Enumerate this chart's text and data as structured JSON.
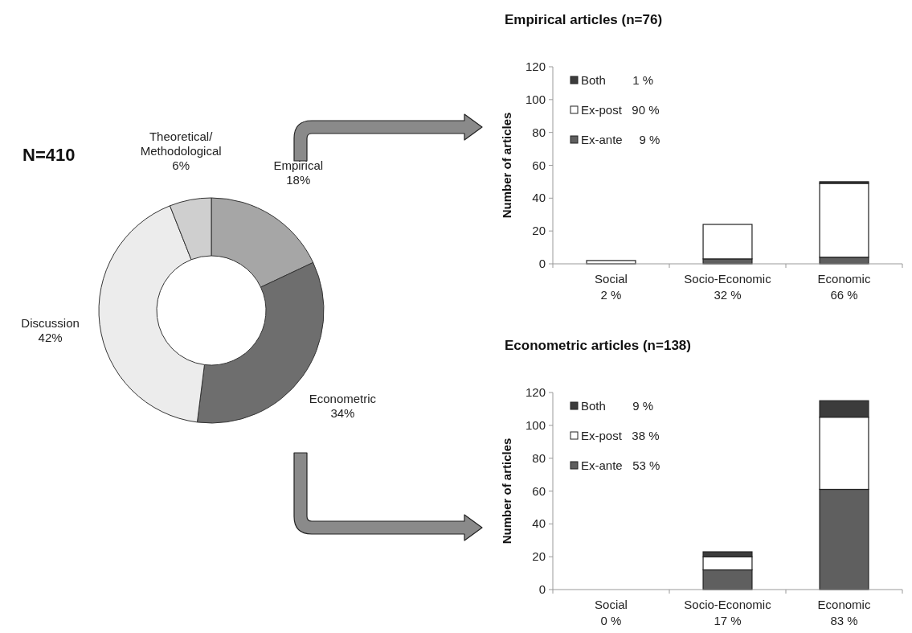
{
  "chart_data": [
    {
      "type": "donut",
      "title": "N=410",
      "categories": [
        "Empirical",
        "Econometric",
        "Discussion",
        "Theoretical/\nMethodological"
      ],
      "values": [
        18,
        34,
        42,
        6
      ],
      "value_labels": [
        "18%",
        "34%",
        "42%",
        "6%"
      ],
      "colors": [
        "#a6a6a6",
        "#6e6e6e",
        "#ececec",
        "#cfcfcf"
      ]
    },
    {
      "type": "bar",
      "title": "Empirical articles (n=76)",
      "ylabel": "Number of articles",
      "categories": [
        "Social\n2 %",
        "Socio-Economic\n32 %",
        "Economic\n66 %"
      ],
      "stacked": true,
      "series": [
        {
          "name": "Ex-ante     9 %",
          "color": "#5f5f5f",
          "values": [
            0,
            3,
            4
          ]
        },
        {
          "name": "Ex-post   90 %",
          "color": "#ffffff",
          "values": [
            2,
            21,
            45
          ]
        },
        {
          "name": "Both        1 %",
          "color": "#3c3c3c",
          "values": [
            0,
            0,
            1
          ]
        }
      ],
      "ylim": [
        0,
        120
      ],
      "yticks": [
        0,
        20,
        40,
        60,
        80,
        100,
        120
      ],
      "legend": "top left"
    },
    {
      "type": "bar",
      "title": "Econometric articles (n=138)",
      "ylabel": "Number of articles",
      "categories": [
        "Social\n0 %",
        "Socio-Economic\n17 %",
        "Economic\n83 %"
      ],
      "stacked": true,
      "series": [
        {
          "name": "Ex-ante   53 %",
          "color": "#5f5f5f",
          "values": [
            0,
            12,
            61
          ]
        },
        {
          "name": "Ex-post   38 %",
          "color": "#ffffff",
          "values": [
            0,
            8,
            44
          ]
        },
        {
          "name": "Both        9 %",
          "color": "#3c3c3c",
          "values": [
            0,
            3,
            10
          ]
        }
      ],
      "ylim": [
        0,
        120
      ],
      "yticks": [
        0,
        20,
        40,
        60,
        80,
        100,
        120
      ],
      "legend": "top left"
    }
  ]
}
